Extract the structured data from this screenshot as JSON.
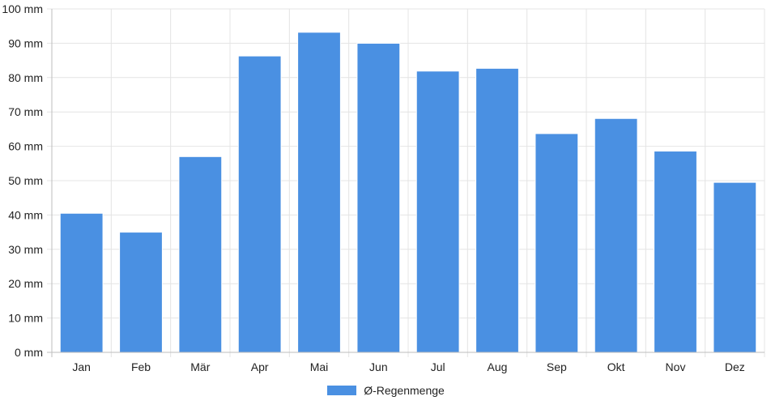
{
  "chart_data": {
    "type": "bar",
    "categories": [
      "Jan",
      "Feb",
      "Mär",
      "Apr",
      "Mai",
      "Jun",
      "Jul",
      "Aug",
      "Sep",
      "Okt",
      "Nov",
      "Dez"
    ],
    "series": [
      {
        "name": "Ø-Regenmenge",
        "values": [
          40.5,
          35,
          57,
          86.3,
          93.2,
          90,
          81.9,
          82.7,
          63.7,
          68.1,
          58.6,
          49.5
        ],
        "color": "#4a90e2"
      }
    ],
    "ylim": [
      0,
      100
    ],
    "yticks": [
      0,
      10,
      20,
      30,
      40,
      50,
      60,
      70,
      80,
      90,
      100
    ],
    "ytick_unit": "mm",
    "grid": true,
    "legend_position": "bottom-center",
    "title": "",
    "xlabel": "",
    "ylabel": ""
  }
}
